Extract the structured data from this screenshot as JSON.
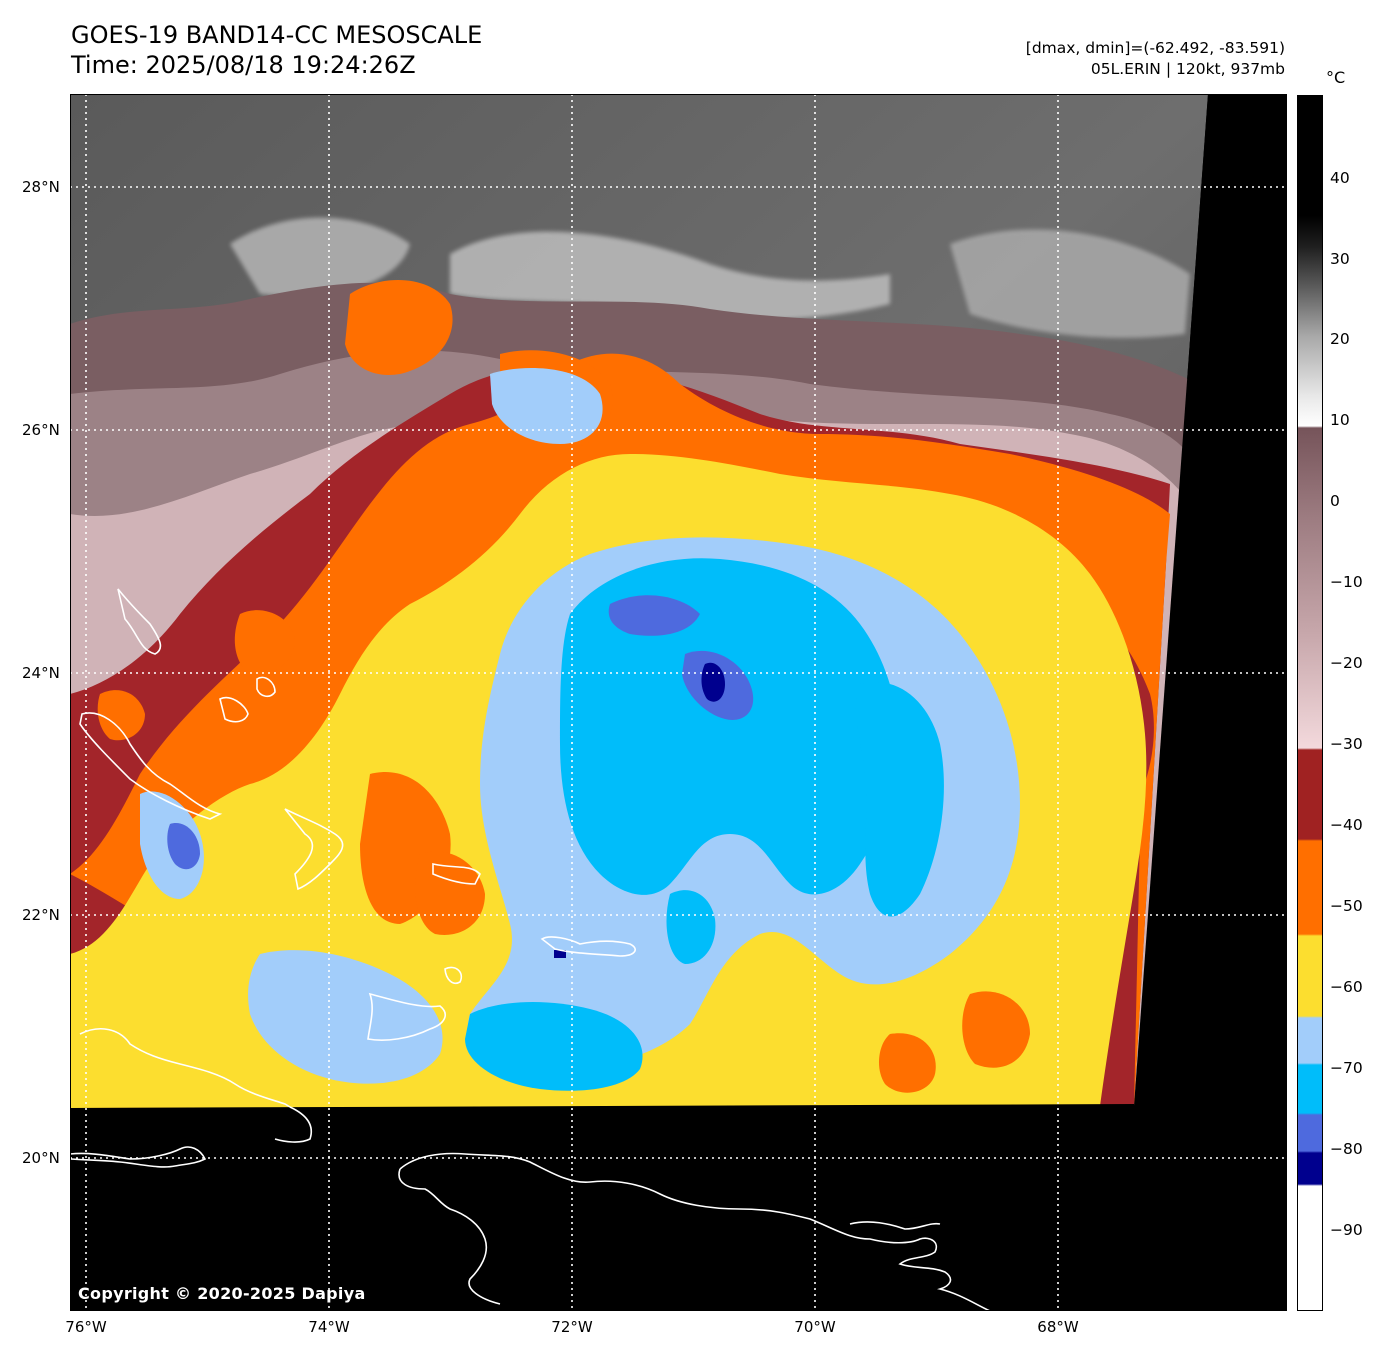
{
  "header": {
    "title_line1": "GOES-19 BAND14-CC MESOSCALE",
    "title_line2": "Time: 2025/08/18 19:24:26Z",
    "range_info": "[dmax, dmin]=(-62.492, -83.591)",
    "storm_info": "05L.ERIN | 120kt, 937mb"
  },
  "map": {
    "latitude_labels": [
      "28°N",
      "26°N",
      "24°N",
      "22°N",
      "20°N"
    ],
    "longitude_labels": [
      "76°W",
      "74°W",
      "72°W",
      "70°W",
      "68°W"
    ],
    "copyright": "Copyright © 2020-2025 Dapiya"
  },
  "colorbar": {
    "unit": "°C",
    "ticks": [
      "40",
      "30",
      "20",
      "10",
      "0",
      "−10",
      "−20",
      "−30",
      "−40",
      "−50",
      "−60",
      "−70",
      "−80",
      "−90"
    ],
    "colors": {
      "black": "#000000",
      "grey": "#8a8a8a",
      "white": "#ffffff",
      "brown": "#76545a",
      "pink": "#f3d9dc",
      "darkred": "#a02222",
      "orange": "#ff6f00",
      "yellow": "#fcde2f",
      "lightblue": "#a2cdfa",
      "cyan": "#00bdfa",
      "royalblue": "#4e6ade",
      "navy": "#00008e"
    }
  }
}
